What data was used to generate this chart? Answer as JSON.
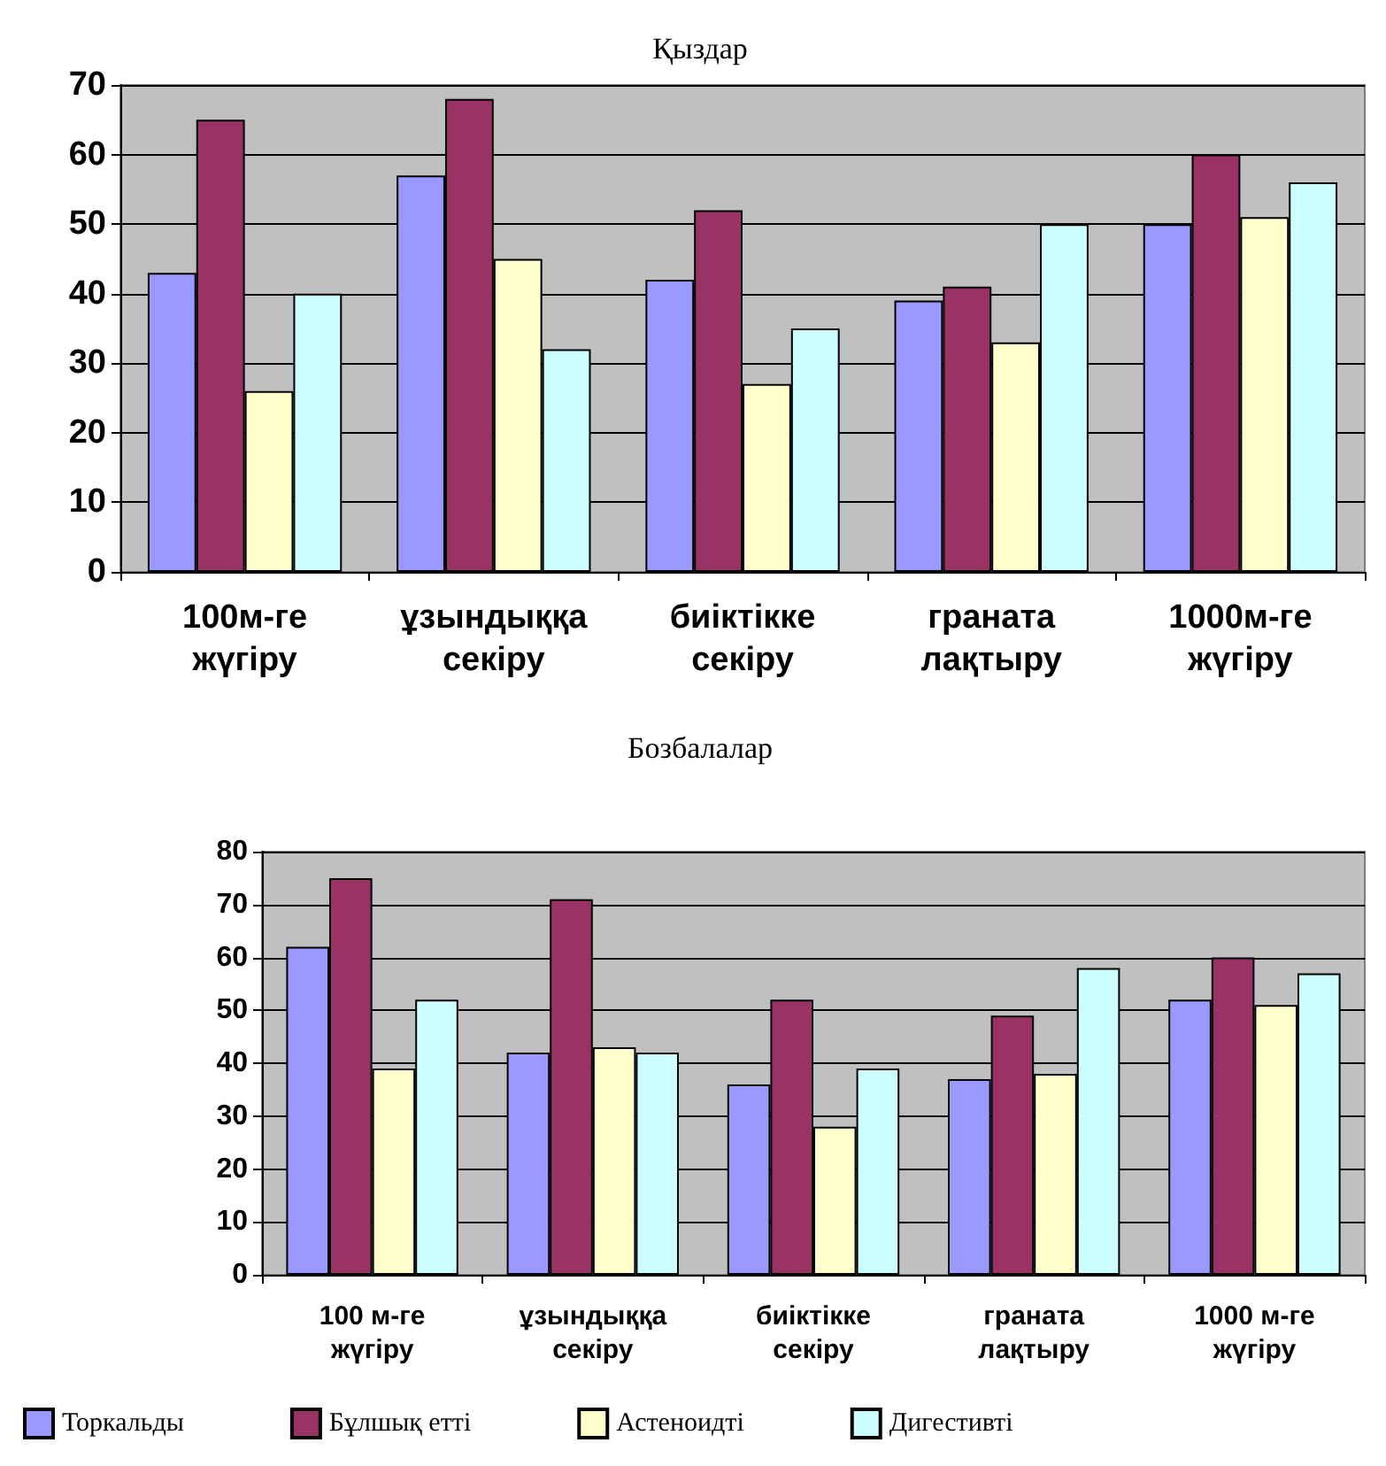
{
  "chart_data": [
    {
      "type": "bar",
      "title": "Қыздар",
      "categories": [
        "100м-ге жүгіру",
        "ұзындыққа секіру",
        "биіктікке секіру",
        "граната лақтыру",
        "1000м-ге жүгіру"
      ],
      "series": [
        {
          "color": "#9999ff",
          "values": [
            43,
            57,
            42,
            39,
            50
          ]
        },
        {
          "color": "#993366",
          "values": [
            65,
            68,
            52,
            41,
            60
          ]
        },
        {
          "color": "#ffffcc",
          "values": [
            26,
            45,
            27,
            33,
            51
          ]
        },
        {
          "color": "#ccffff",
          "values": [
            40,
            32,
            35,
            50,
            56
          ]
        }
      ],
      "ylim": [
        0,
        70
      ],
      "yticks": [
        0,
        10,
        20,
        30,
        40,
        50,
        60,
        70
      ],
      "grid": "y",
      "legend": false
    },
    {
      "type": "bar",
      "title": "Бозбалалар",
      "categories": [
        "100 м-ге жүгіру",
        "ұзындыққа секіру",
        "биіктікке секіру",
        "граната лақтыру",
        "1000 м-ге жүгіру"
      ],
      "series": [
        {
          "name": "Торкальды",
          "color": "#9999ff",
          "values": [
            62,
            42,
            36,
            37,
            52
          ]
        },
        {
          "name": "Бұлшық етті",
          "color": "#993366",
          "values": [
            75,
            71,
            52,
            49,
            60
          ]
        },
        {
          "name": "Астеноидті",
          "color": "#ffffcc",
          "values": [
            39,
            43,
            28,
            38,
            51
          ]
        },
        {
          "name": "Дигестивті",
          "color": "#ccffff",
          "values": [
            52,
            42,
            39,
            58,
            57
          ]
        }
      ],
      "ylim": [
        0,
        80
      ],
      "yticks": [
        0,
        10,
        20,
        30,
        40,
        50,
        60,
        70,
        80
      ],
      "grid": "y",
      "legend": "bottom"
    }
  ]
}
